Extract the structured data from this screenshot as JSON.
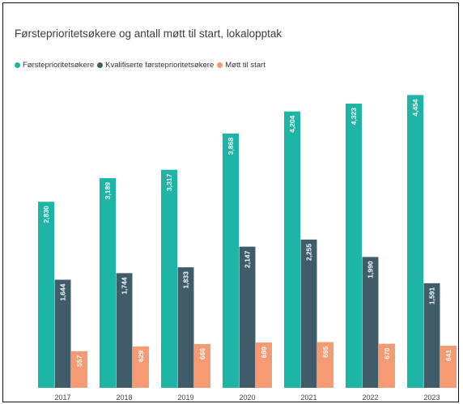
{
  "chart_data": {
    "type": "bar",
    "title": "Førsteprioritetsøkere og antall møtt til start, lokalopptak",
    "xlabel": "",
    "ylabel": "",
    "ylim": [
      0,
      4800
    ],
    "grid": false,
    "legend_position": "top-left",
    "categories": [
      "2017",
      "2018",
      "2019",
      "2020",
      "2021",
      "2022",
      "2023"
    ],
    "series": [
      {
        "name": "Førsteprioritetsøkere",
        "color": "#1fb5a6",
        "values": [
          2830,
          3189,
          3317,
          3868,
          4204,
          4323,
          4454
        ],
        "labels": [
          "2,830",
          "3,189",
          "3,317",
          "3,868",
          "4,204",
          "4,323",
          "4,454"
        ]
      },
      {
        "name": "Kvalifiserte førsteprioritetsøkere",
        "color": "#3f5c68",
        "values": [
          1644,
          1744,
          1833,
          2147,
          2255,
          1990,
          1591
        ],
        "labels": [
          "1,644",
          "1,744",
          "1,833",
          "2,147",
          "2,255",
          "1,990",
          "1,591"
        ]
      },
      {
        "name": "Møtt til start",
        "color": "#f59a72",
        "values": [
          557,
          629,
          666,
          689,
          695,
          670,
          641
        ],
        "labels": [
          "557",
          "629",
          "666",
          "689",
          "695",
          "670",
          "641"
        ]
      }
    ]
  }
}
